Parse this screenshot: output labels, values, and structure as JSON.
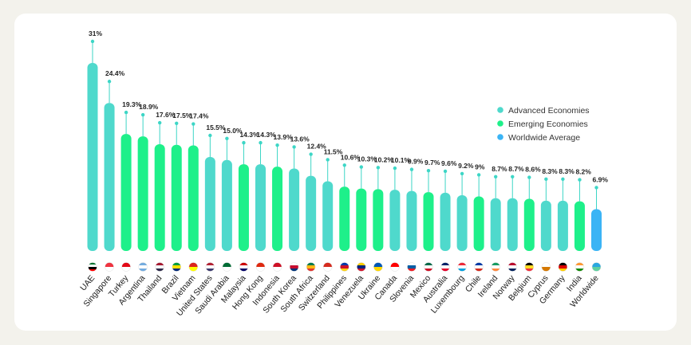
{
  "chart_data": {
    "type": "bar",
    "title": "",
    "xlabel": "",
    "ylabel": "",
    "ylim": [
      0,
      32
    ],
    "grid": false,
    "legend_position": "right",
    "colors": {
      "advanced": "#4fd9cc",
      "emerging": "#1ef08a",
      "worldwide": "#3bb4f5",
      "stem": "#3dd6c6"
    },
    "legend": [
      {
        "key": "advanced",
        "label": "Advanced Economies"
      },
      {
        "key": "emerging",
        "label": "Emerging Economies"
      },
      {
        "key": "worldwide",
        "label": "Worldwide Average"
      }
    ],
    "categories": [
      "UAE",
      "Singapore",
      "Turkey",
      "Argentina",
      "Thailand",
      "Brazil",
      "Vietnam",
      "United States",
      "Saudi Arabia",
      "Malaysia",
      "Hong Kong",
      "Indonesia",
      "South Korea",
      "South Africa",
      "Switzerland",
      "Philippines",
      "Venezuela",
      "Ukraine",
      "Canada",
      "Slovenia",
      "Mexico",
      "Australia",
      "Luxembourg",
      "Chile",
      "Ireland",
      "Norway",
      "Belgium",
      "Cyprus",
      "Germany",
      "India",
      "Worldwide"
    ],
    "values": [
      31,
      24.4,
      19.3,
      18.9,
      17.6,
      17.5,
      17.4,
      15.5,
      15.0,
      14.3,
      14.3,
      13.9,
      13.6,
      12.4,
      11.5,
      10.6,
      10.3,
      10.2,
      10.1,
      9.9,
      9.7,
      9.6,
      9.2,
      9,
      8.7,
      8.7,
      8.6,
      8.3,
      8.3,
      8.2,
      6.9
    ],
    "labels": [
      "31%",
      "24.4%",
      "19.3%",
      "18.9%",
      "17.6%",
      "17.5%",
      "17.4%",
      "15.5%",
      "15.0%",
      "14.3%",
      "14.3%",
      "13.9%",
      "13.6%",
      "12.4%",
      "11.5%",
      "10.6%",
      "10.3%",
      "10.2%",
      "10.1%",
      "9.9%",
      "9.7%",
      "9.6%",
      "9.2%",
      "9%",
      "8.7%",
      "8.7%",
      "8.6%",
      "8.3%",
      "8.3%",
      "8.2%",
      "6.9%"
    ],
    "groups": [
      "advanced",
      "advanced",
      "emerging",
      "emerging",
      "emerging",
      "emerging",
      "emerging",
      "advanced",
      "advanced",
      "emerging",
      "advanced",
      "emerging",
      "advanced",
      "advanced",
      "advanced",
      "emerging",
      "emerging",
      "emerging",
      "advanced",
      "advanced",
      "emerging",
      "advanced",
      "advanced",
      "emerging",
      "advanced",
      "advanced",
      "emerging",
      "advanced",
      "advanced",
      "emerging",
      "worldwide"
    ],
    "flag_icons": [
      "uae-flag-icon",
      "singapore-flag-icon",
      "turkey-flag-icon",
      "argentina-flag-icon",
      "thailand-flag-icon",
      "brazil-flag-icon",
      "vietnam-flag-icon",
      "united-states-flag-icon",
      "saudi-arabia-flag-icon",
      "malaysia-flag-icon",
      "hong-kong-flag-icon",
      "indonesia-flag-icon",
      "south-korea-flag-icon",
      "south-africa-flag-icon",
      "switzerland-flag-icon",
      "philippines-flag-icon",
      "venezuela-flag-icon",
      "ukraine-flag-icon",
      "canada-flag-icon",
      "slovenia-flag-icon",
      "mexico-flag-icon",
      "australia-flag-icon",
      "luxembourg-flag-icon",
      "chile-flag-icon",
      "ireland-flag-icon",
      "norway-flag-icon",
      "belgium-flag-icon",
      "cyprus-flag-icon",
      "germany-flag-icon",
      "india-flag-icon",
      "globe-icon"
    ]
  }
}
